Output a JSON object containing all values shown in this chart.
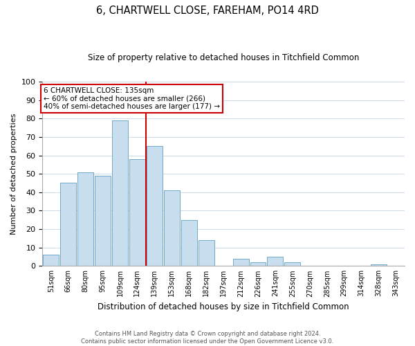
{
  "title": "6, CHARTWELL CLOSE, FAREHAM, PO14 4RD",
  "subtitle": "Size of property relative to detached houses in Titchfield Common",
  "xlabel": "Distribution of detached houses by size in Titchfield Common",
  "ylabel": "Number of detached properties",
  "bar_labels": [
    "51sqm",
    "66sqm",
    "80sqm",
    "95sqm",
    "109sqm",
    "124sqm",
    "139sqm",
    "153sqm",
    "168sqm",
    "182sqm",
    "197sqm",
    "212sqm",
    "226sqm",
    "241sqm",
    "255sqm",
    "270sqm",
    "285sqm",
    "299sqm",
    "314sqm",
    "328sqm",
    "343sqm"
  ],
  "bar_values": [
    6,
    45,
    51,
    49,
    79,
    58,
    65,
    41,
    25,
    14,
    0,
    4,
    2,
    5,
    2,
    0,
    0,
    0,
    0,
    1,
    0
  ],
  "bar_color": "#c8dded",
  "bar_edge_color": "#6fa8c8",
  "annotation_title": "6 CHARTWELL CLOSE: 135sqm",
  "annotation_line1": "← 60% of detached houses are smaller (266)",
  "annotation_line2": "40% of semi-detached houses are larger (177) →",
  "annotation_box_color": "#ffffff",
  "annotation_box_edge": "#cc0000",
  "vline_color": "#cc0000",
  "ylim": [
    0,
    100
  ],
  "yticks": [
    0,
    10,
    20,
    30,
    40,
    50,
    60,
    70,
    80,
    90,
    100
  ],
  "footer1": "Contains HM Land Registry data © Crown copyright and database right 2024.",
  "footer2": "Contains public sector information licensed under the Open Government Licence v3.0.",
  "background_color": "#ffffff",
  "grid_color": "#cddaeb"
}
